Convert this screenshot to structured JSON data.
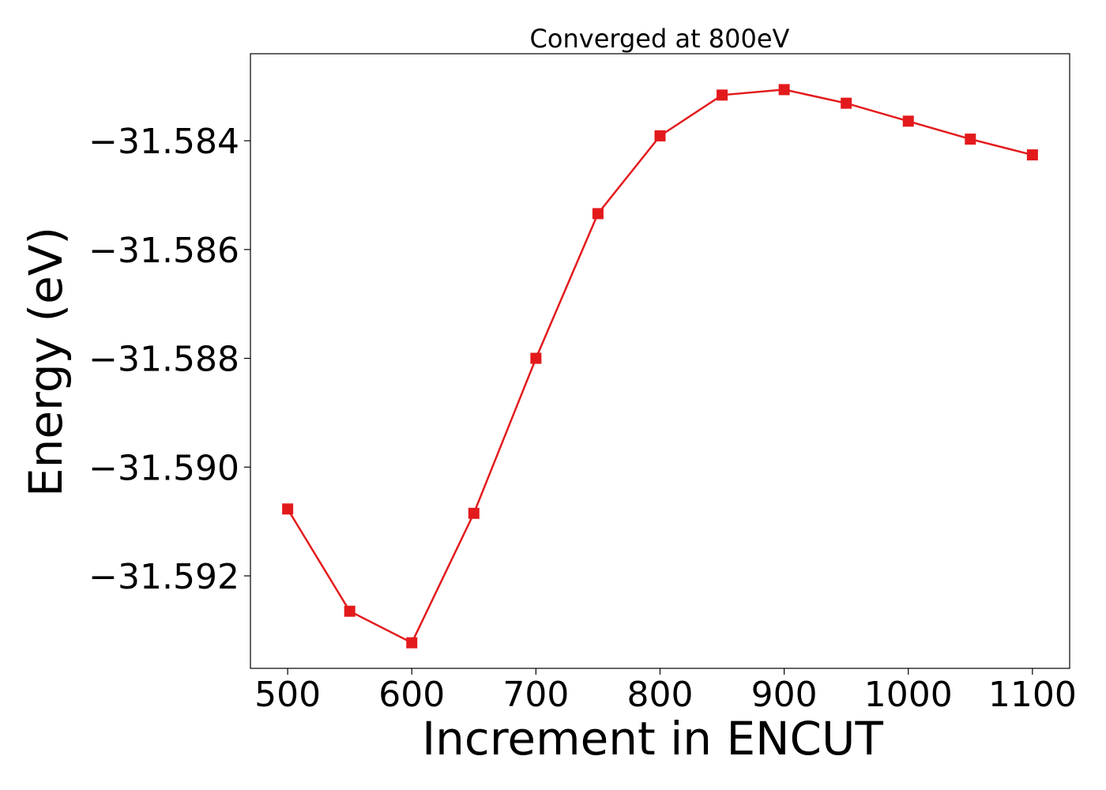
{
  "chart_data": {
    "type": "line",
    "title": "Converged at 800eV",
    "xlabel": "Increment in ENCUT",
    "ylabel": "Energy (eV)",
    "xlim": [
      470,
      1130
    ],
    "ylim": [
      -31.5937,
      -31.5824
    ],
    "x_ticks": [
      500,
      600,
      700,
      800,
      900,
      1000,
      1100
    ],
    "x_tick_labels": [
      "500",
      "600",
      "700",
      "800",
      "900",
      "1000",
      "1100"
    ],
    "y_ticks": [
      -31.584,
      -31.586,
      -31.588,
      -31.59,
      -31.592
    ],
    "y_tick_labels": [
      "−31.584",
      "−31.586",
      "−31.588",
      "−31.590",
      "−31.592"
    ],
    "grid": false,
    "color": "#e31a1c",
    "marker": "square",
    "series": [
      {
        "x": [
          500,
          550,
          600,
          650,
          700,
          750,
          800,
          850,
          900,
          950,
          1000,
          1050,
          1100
        ],
        "values": [
          -31.59077,
          -31.59265,
          -31.59323,
          -31.59085,
          -31.588,
          -31.58534,
          -31.58391,
          -31.58316,
          -31.58306,
          -31.58331,
          -31.58364,
          -31.58397,
          -31.58426
        ]
      }
    ]
  }
}
